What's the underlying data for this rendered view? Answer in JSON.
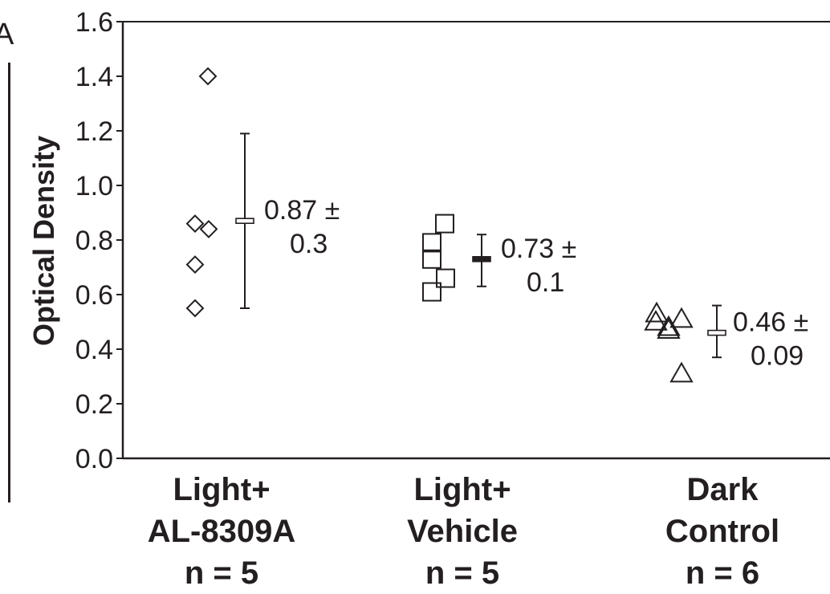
{
  "chart_data": {
    "type": "scatter",
    "title": "",
    "xlabel": "",
    "ylabel": "Optical Density",
    "ylim": [
      0.0,
      1.6
    ],
    "yticks": [
      "0.0",
      "0.2",
      "0.4",
      "0.6",
      "0.8",
      "1.0",
      "1.2",
      "1.4",
      "1.6"
    ],
    "grid": false,
    "panel_label": "A",
    "groups": [
      {
        "line1": "Light+",
        "line2": "AL-8309A",
        "n_label": "n = 5",
        "marker": "diamond",
        "points": [
          1.4,
          0.86,
          0.84,
          0.71,
          0.55
        ],
        "mean": 0.87,
        "sd_low": 0.55,
        "sd_high": 1.19,
        "annotation_line1": "0.87 ±",
        "annotation_line2": "0.3"
      },
      {
        "line1": "Light+",
        "line2": "Vehicle",
        "n_label": "n = 5",
        "marker": "square",
        "points": [
          0.86,
          0.79,
          0.73,
          0.66,
          0.61
        ],
        "mean": 0.73,
        "sd_low": 0.63,
        "sd_high": 0.82,
        "annotation_line1": "0.73 ±",
        "annotation_line2": "0.1"
      },
      {
        "line1": "Dark",
        "line2": "Control",
        "n_label": "n = 6",
        "marker": "triangle",
        "points": [
          0.53,
          0.51,
          0.5,
          0.48,
          0.47,
          0.31
        ],
        "mean": 0.46,
        "sd_low": 0.37,
        "sd_high": 0.56,
        "annotation_line1": "0.46 ±",
        "annotation_line2": "0.09"
      }
    ]
  }
}
